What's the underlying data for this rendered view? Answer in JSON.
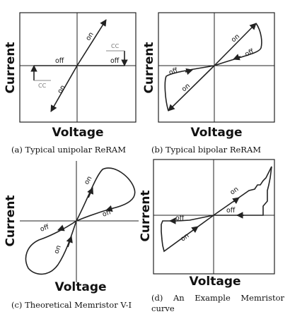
{
  "axis_labels": {
    "x": "Voltage",
    "y": "Current"
  },
  "panels": [
    {
      "caption": "(a) Typical unipolar ReRAM",
      "annotations": {
        "on_upper": "on",
        "on_lower": "on",
        "off_left": "off",
        "off_right": "off",
        "cc_upper": "CC",
        "cc_lower": "CC"
      }
    },
    {
      "caption": "(b) Typical bipolar ReRAM",
      "annotations": {
        "on_upper": "on",
        "off_upper": "off",
        "off_lower": "off",
        "on_lower": "on"
      }
    },
    {
      "caption": "(c) Theoretical Memristor V-I",
      "annotations": {
        "on_upper": "on",
        "off_upper": "off",
        "off_lower": "off",
        "on_lower": "on"
      }
    },
    {
      "caption_line1": "(d)    An    Example    Memristor",
      "caption_line2": "curve",
      "annotations": {
        "on_upper": "on",
        "off_upper": "off",
        "off_lower": "off",
        "on_lower": "on"
      }
    }
  ]
}
